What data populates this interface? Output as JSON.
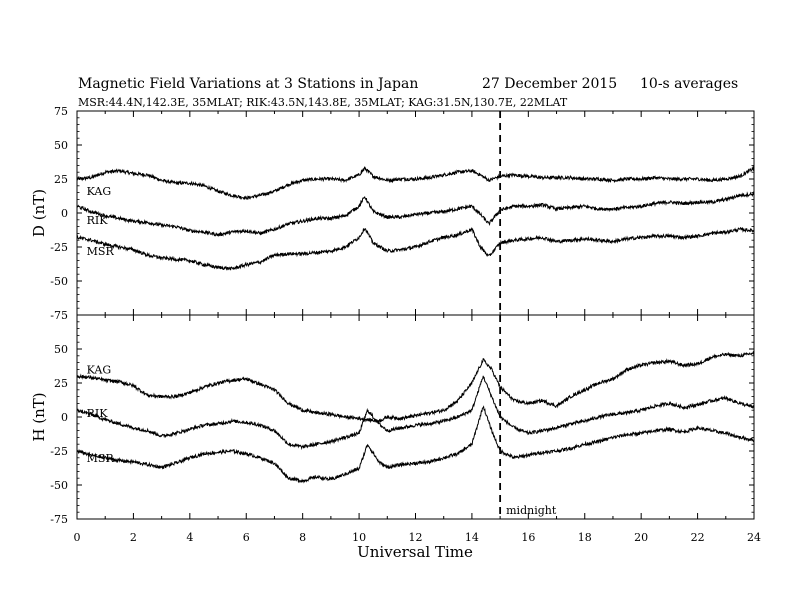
{
  "chart_data": {
    "type": "line",
    "title": "Magnetic Field Variations at 3 Stations in Japan",
    "date": "27 December 2015",
    "averaging": "10-s averages",
    "subtitle": "MSR:44.4N,142.3E, 35MLAT;  RIK:43.5N,143.8E, 35MLAT;  KAG:31.5N,130.7E, 22MLAT",
    "xlabel": "Universal Time",
    "xlim": [
      0,
      24
    ],
    "x_ticks": [
      "0",
      "2",
      "4",
      "6",
      "8",
      "10",
      "12",
      "14",
      "16",
      "18",
      "20",
      "22",
      "24"
    ],
    "marker": {
      "x": 15.0,
      "label": "midnight"
    },
    "panels": [
      {
        "ylabel": "D (nT)",
        "ylim": [
          -75,
          75
        ],
        "y_ticks": [
          "75",
          "50",
          "25",
          "0",
          "-25",
          "-50",
          "-75"
        ],
        "series": [
          {
            "name": "KAG",
            "label_at": [
              0.2,
              16
            ],
            "x": [
              0,
              0.5,
              1,
              1.5,
              2,
              2.5,
              3,
              3.5,
              4,
              4.5,
              5,
              5.5,
              6,
              6.5,
              7,
              7.5,
              8,
              8.5,
              9,
              9.5,
              10,
              10.2,
              10.5,
              11,
              11.5,
              12,
              12.5,
              13,
              13.5,
              14,
              14.3,
              14.6,
              15,
              15.5,
              16,
              16.5,
              17,
              17.5,
              18,
              18.5,
              19,
              19.5,
              20,
              20.5,
              21,
              21.5,
              22,
              22.5,
              23,
              23.5,
              24
            ],
            "values": [
              25,
              26,
              30,
              31,
              29,
              28,
              24,
              22,
              22,
              20,
              16,
              13,
              11,
              13,
              16,
              21,
              24,
              25,
              25,
              24,
              28,
              33,
              27,
              24,
              25,
              25,
              26,
              28,
              30,
              31,
              28,
              24,
              27,
              28,
              27,
              26,
              26,
              26,
              25,
              25,
              24,
              25,
              25,
              26,
              25,
              25,
              25,
              24,
              25,
              27,
              33
            ]
          },
          {
            "name": "RIK",
            "label_at": [
              0.2,
              -5
            ],
            "x": [
              0,
              0.5,
              1,
              1.5,
              2,
              2.5,
              3,
              3.5,
              4,
              4.5,
              5,
              5.5,
              6,
              6.5,
              7,
              7.5,
              8,
              8.5,
              9,
              9.5,
              10,
              10.2,
              10.5,
              11,
              11.5,
              12,
              12.5,
              13,
              13.5,
              14,
              14.3,
              14.6,
              15,
              15.5,
              16,
              16.5,
              17,
              17.5,
              18,
              18.5,
              19,
              19.5,
              20,
              20.5,
              21,
              21.5,
              22,
              22.5,
              23,
              23.5,
              24
            ],
            "values": [
              5,
              1,
              -2,
              -4,
              -6,
              -7,
              -9,
              -10,
              -13,
              -14,
              -16,
              -14,
              -13,
              -15,
              -12,
              -8,
              -6,
              -4,
              -4,
              -2,
              5,
              12,
              1,
              -3,
              -3,
              -1,
              0,
              1,
              3,
              5,
              -1,
              -8,
              2,
              5,
              5,
              6,
              3,
              4,
              5,
              3,
              3,
              4,
              5,
              7,
              8,
              7,
              8,
              8,
              10,
              13,
              14
            ]
          },
          {
            "name": "MSR",
            "label_at": [
              0.2,
              -28
            ],
            "x": [
              0,
              0.5,
              1,
              1.5,
              2,
              2.5,
              3,
              3.5,
              4,
              4.5,
              5,
              5.5,
              6,
              6.5,
              7,
              7.5,
              8,
              8.5,
              9,
              9.5,
              10,
              10.2,
              10.5,
              11,
              11.5,
              12,
              12.5,
              13,
              13.5,
              14,
              14.3,
              14.6,
              15,
              15.5,
              16,
              16.5,
              17,
              17.5,
              18,
              18.5,
              19,
              19.5,
              20,
              20.5,
              21,
              21.5,
              22,
              22.5,
              23,
              23.5,
              24
            ],
            "values": [
              -18,
              -20,
              -23,
              -25,
              -27,
              -31,
              -33,
              -34,
              -35,
              -38,
              -40,
              -41,
              -38,
              -36,
              -31,
              -30,
              -30,
              -29,
              -28,
              -25,
              -18,
              -11,
              -22,
              -28,
              -27,
              -25,
              -21,
              -18,
              -16,
              -12,
              -25,
              -32,
              -22,
              -20,
              -19,
              -18,
              -21,
              -20,
              -19,
              -20,
              -21,
              -19,
              -18,
              -17,
              -17,
              -18,
              -17,
              -15,
              -14,
              -12,
              -13
            ]
          }
        ]
      },
      {
        "ylabel": "H (nT)",
        "ylim": [
          -75,
          75
        ],
        "y_ticks": [
          "50",
          "25",
          "0",
          "-25",
          "-50",
          "-75"
        ],
        "series": [
          {
            "name": "KAG",
            "label_at": [
              0.2,
              35
            ],
            "x": [
              0,
              0.5,
              1,
              1.5,
              2,
              2.5,
              3,
              3.5,
              4,
              4.5,
              5,
              5.5,
              6,
              6.5,
              7,
              7.5,
              8,
              8.5,
              9,
              9.5,
              10,
              10.3,
              10.7,
              11,
              11.5,
              12,
              12.5,
              13,
              13.5,
              14,
              14.4,
              14.7,
              15,
              15.5,
              16,
              16.5,
              17,
              17.5,
              18,
              18.5,
              19,
              19.5,
              20,
              20.5,
              21,
              21.5,
              22,
              22.5,
              23,
              23.5,
              24
            ],
            "values": [
              30,
              29,
              27,
              26,
              23,
              16,
              15,
              15,
              18,
              22,
              25,
              27,
              28,
              24,
              20,
              10,
              5,
              3,
              2,
              0,
              -1,
              -2,
              -3,
              0,
              -1,
              1,
              3,
              5,
              12,
              25,
              42,
              35,
              22,
              12,
              10,
              12,
              8,
              15,
              20,
              25,
              28,
              35,
              38,
              40,
              41,
              38,
              39,
              44,
              46,
              45,
              47
            ]
          },
          {
            "name": "RIK",
            "label_at": [
              0.2,
              3
            ],
            "x": [
              0,
              0.5,
              1,
              1.5,
              2,
              2.5,
              3,
              3.5,
              4,
              4.5,
              5,
              5.5,
              6,
              6.5,
              7,
              7.5,
              8,
              8.5,
              9,
              9.5,
              10,
              10.3,
              10.7,
              11,
              11.5,
              12,
              12.5,
              13,
              13.5,
              14,
              14.4,
              14.7,
              15,
              15.5,
              16,
              16.5,
              17,
              17.5,
              18,
              18.5,
              19,
              19.5,
              20,
              20.5,
              21,
              21.5,
              22,
              22.5,
              23,
              23.5,
              24
            ],
            "values": [
              5,
              2,
              -2,
              -5,
              -8,
              -10,
              -14,
              -12,
              -9,
              -6,
              -5,
              -3,
              -4,
              -6,
              -10,
              -20,
              -22,
              -20,
              -18,
              -15,
              -12,
              5,
              -5,
              -10,
              -8,
              -6,
              -5,
              -3,
              0,
              5,
              30,
              15,
              0,
              -8,
              -12,
              -10,
              -8,
              -5,
              -3,
              0,
              2,
              3,
              5,
              8,
              10,
              7,
              9,
              12,
              14,
              10,
              7
            ]
          },
          {
            "name": "MSR",
            "label_at": [
              0.2,
              -30
            ],
            "x": [
              0,
              0.5,
              1,
              1.5,
              2,
              2.5,
              3,
              3.5,
              4,
              4.5,
              5,
              5.5,
              6,
              6.5,
              7,
              7.5,
              8,
              8.5,
              9,
              9.5,
              10,
              10.3,
              10.7,
              11,
              11.5,
              12,
              12.5,
              13,
              13.5,
              14,
              14.4,
              14.7,
              15,
              15.5,
              16,
              16.5,
              17,
              17.5,
              18,
              18.5,
              19,
              19.5,
              20,
              20.5,
              21,
              21.5,
              22,
              22.5,
              23,
              23.5,
              24
            ],
            "values": [
              -25,
              -28,
              -30,
              -32,
              -33,
              -35,
              -37,
              -34,
              -30,
              -27,
              -26,
              -25,
              -27,
              -30,
              -34,
              -45,
              -47,
              -44,
              -46,
              -42,
              -38,
              -20,
              -33,
              -37,
              -35,
              -34,
              -33,
              -30,
              -27,
              -20,
              8,
              -10,
              -25,
              -30,
              -28,
              -26,
              -25,
              -23,
              -20,
              -18,
              -15,
              -13,
              -12,
              -10,
              -9,
              -11,
              -8,
              -10,
              -12,
              -15,
              -17
            ]
          }
        ]
      }
    ]
  }
}
